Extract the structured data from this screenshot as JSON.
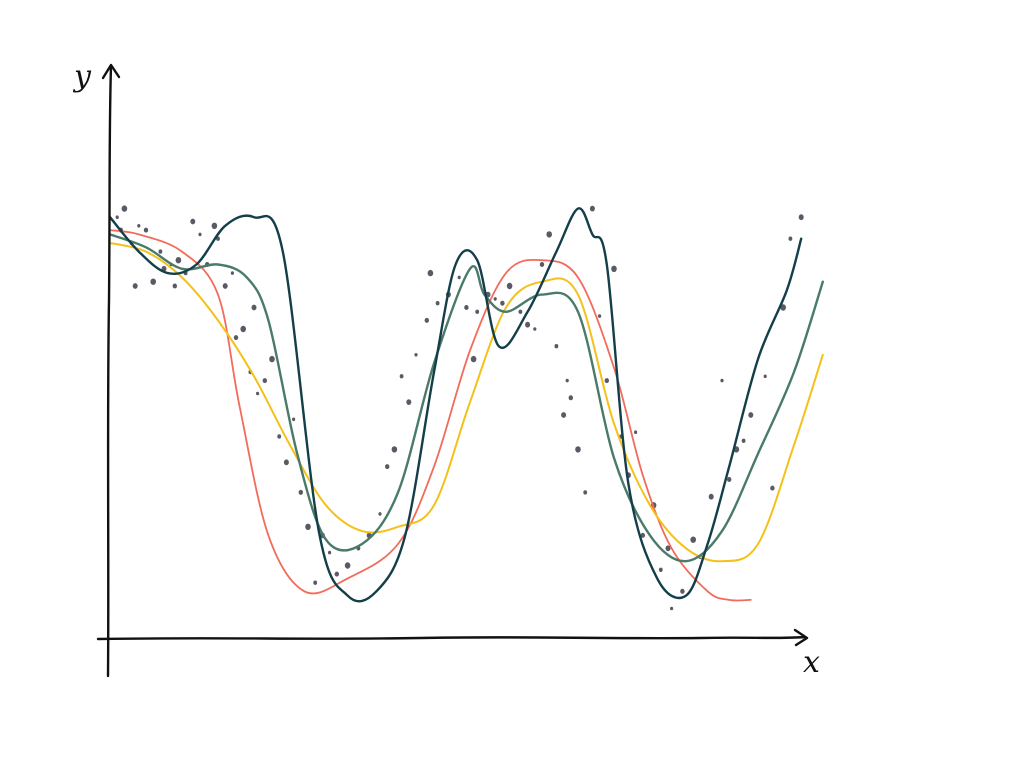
{
  "chart_data": {
    "type": "scatter",
    "xlabel": "x",
    "ylabel": "y",
    "xlim": [
      0,
      10
    ],
    "ylim": [
      0,
      10
    ],
    "grid": false,
    "legend": "none",
    "colors": {
      "axis": "#111111",
      "points": "#5a5a66"
    },
    "points": [
      [
        0.1,
        9.6
      ],
      [
        0.15,
        9.3
      ],
      [
        0.2,
        9.8
      ],
      [
        0.3,
        9.0
      ],
      [
        0.35,
        8.0
      ],
      [
        0.4,
        9.4
      ],
      [
        0.5,
        9.3
      ],
      [
        0.6,
        8.1
      ],
      [
        0.7,
        8.8
      ],
      [
        0.75,
        8.4
      ],
      [
        0.85,
        8.5
      ],
      [
        0.9,
        8.0
      ],
      [
        0.95,
        8.6
      ],
      [
        1.05,
        8.3
      ],
      [
        1.15,
        9.5
      ],
      [
        1.25,
        9.2
      ],
      [
        1.35,
        8.5
      ],
      [
        1.45,
        9.4
      ],
      [
        1.5,
        9.1
      ],
      [
        1.6,
        8.0
      ],
      [
        1.7,
        8.3
      ],
      [
        1.75,
        6.8
      ],
      [
        1.85,
        7.0
      ],
      [
        1.95,
        6.0
      ],
      [
        2.0,
        7.5
      ],
      [
        2.05,
        5.5
      ],
      [
        2.15,
        5.8
      ],
      [
        2.25,
        6.3
      ],
      [
        2.35,
        4.5
      ],
      [
        2.45,
        3.9
      ],
      [
        2.55,
        4.9
      ],
      [
        2.65,
        3.2
      ],
      [
        2.75,
        2.4
      ],
      [
        2.85,
        1.1
      ],
      [
        2.95,
        2.2
      ],
      [
        3.05,
        1.8
      ],
      [
        3.15,
        1.3
      ],
      [
        3.3,
        1.5
      ],
      [
        3.45,
        1.9
      ],
      [
        3.6,
        2.2
      ],
      [
        3.75,
        2.7
      ],
      [
        3.85,
        3.8
      ],
      [
        3.95,
        4.2
      ],
      [
        4.05,
        5.9
      ],
      [
        4.15,
        5.3
      ],
      [
        4.25,
        6.4
      ],
      [
        4.4,
        7.2
      ],
      [
        4.45,
        8.3
      ],
      [
        4.55,
        7.6
      ],
      [
        4.7,
        7.8
      ],
      [
        4.85,
        8.2
      ],
      [
        4.95,
        7.5
      ],
      [
        5.05,
        6.3
      ],
      [
        5.1,
        7.4
      ],
      [
        5.25,
        7.8
      ],
      [
        5.35,
        7.7
      ],
      [
        5.45,
        7.6
      ],
      [
        5.55,
        8.0
      ],
      [
        5.7,
        7.4
      ],
      [
        5.8,
        7.1
      ],
      [
        5.9,
        7.0
      ],
      [
        6.0,
        8.5
      ],
      [
        6.1,
        9.2
      ],
      [
        6.2,
        6.6
      ],
      [
        6.3,
        5.0
      ],
      [
        6.35,
        5.8
      ],
      [
        6.4,
        5.4
      ],
      [
        6.5,
        4.2
      ],
      [
        6.6,
        3.2
      ],
      [
        6.7,
        9.8
      ],
      [
        6.8,
        7.3
      ],
      [
        6.9,
        5.8
      ],
      [
        7.0,
        8.4
      ],
      [
        7.1,
        4.5
      ],
      [
        7.2,
        3.6
      ],
      [
        7.3,
        4.6
      ],
      [
        7.4,
        2.2
      ],
      [
        7.55,
        2.9
      ],
      [
        7.65,
        1.4
      ],
      [
        7.75,
        1.9
      ],
      [
        7.8,
        0.5
      ],
      [
        7.95,
        0.9
      ],
      [
        8.1,
        2.1
      ],
      [
        8.2,
        1.7
      ],
      [
        8.35,
        3.1
      ],
      [
        8.5,
        5.8
      ],
      [
        8.6,
        3.5
      ],
      [
        8.7,
        4.2
      ],
      [
        8.8,
        4.4
      ],
      [
        8.9,
        5.0
      ],
      [
        9.1,
        5.9
      ],
      [
        9.2,
        3.3
      ],
      [
        9.35,
        7.5
      ],
      [
        9.45,
        9.1
      ],
      [
        9.6,
        9.6
      ]
    ],
    "series": [
      {
        "color": "#f26b5b",
        "x": [
          0.0,
          0.4,
          1.0,
          1.5,
          1.8,
          2.2,
          2.7,
          3.3,
          4.0,
          4.5,
          5.0,
          5.5,
          6.0,
          6.5,
          7.0,
          7.4,
          7.8,
          8.3,
          8.6,
          8.9
        ],
        "y": [
          9.3,
          9.2,
          8.8,
          7.8,
          5.2,
          2.2,
          0.9,
          1.2,
          2.0,
          3.8,
          6.5,
          8.3,
          8.6,
          8.2,
          6.1,
          3.6,
          1.9,
          0.9,
          0.7,
          0.7
        ]
      },
      {
        "color": "#f3c11a",
        "x": [
          0.0,
          0.5,
          1.0,
          1.5,
          2.0,
          2.5,
          3.0,
          3.5,
          4.0,
          4.5,
          5.0,
          5.5,
          6.0,
          6.5,
          7.0,
          7.5,
          8.0,
          8.5,
          9.0,
          9.5,
          9.9
        ],
        "y": [
          9.0,
          8.8,
          8.2,
          7.2,
          5.9,
          4.3,
          2.9,
          2.3,
          2.4,
          2.9,
          5.3,
          7.5,
          8.1,
          7.8,
          4.8,
          2.9,
          1.9,
          1.6,
          2.0,
          4.3,
          6.4
        ]
      },
      {
        "color": "#4a7a6a",
        "x": [
          0.0,
          0.5,
          1.0,
          1.5,
          1.9,
          2.2,
          2.6,
          3.0,
          3.5,
          4.0,
          4.5,
          5.0,
          5.2,
          5.5,
          6.0,
          6.5,
          7.0,
          7.5,
          8.0,
          8.5,
          9.0,
          9.5,
          9.9
        ],
        "y": [
          9.2,
          8.9,
          8.4,
          8.5,
          8.2,
          7.2,
          4.1,
          2.1,
          2.0,
          3.2,
          6.2,
          8.4,
          7.8,
          7.4,
          7.8,
          7.4,
          4.0,
          2.2,
          1.6,
          2.3,
          4.1,
          6.0,
          8.1
        ]
      },
      {
        "color": "#143f4a",
        "x": [
          0.0,
          0.4,
          0.8,
          1.2,
          1.6,
          2.0,
          2.4,
          2.9,
          3.3,
          3.7,
          4.1,
          4.5,
          4.8,
          5.1,
          5.4,
          5.8,
          6.2,
          6.5,
          6.7,
          6.9,
          7.2,
          7.6,
          8.0,
          8.3,
          8.6,
          9.0,
          9.4,
          9.6
        ],
        "y": [
          9.6,
          8.8,
          8.3,
          8.5,
          9.4,
          9.6,
          8.8,
          2.3,
          0.8,
          0.9,
          2.2,
          6.0,
          8.5,
          8.6,
          6.6,
          7.4,
          8.8,
          9.8,
          9.2,
          8.5,
          3.4,
          1.2,
          0.8,
          2.0,
          3.8,
          6.3,
          7.9,
          9.1
        ]
      }
    ]
  }
}
